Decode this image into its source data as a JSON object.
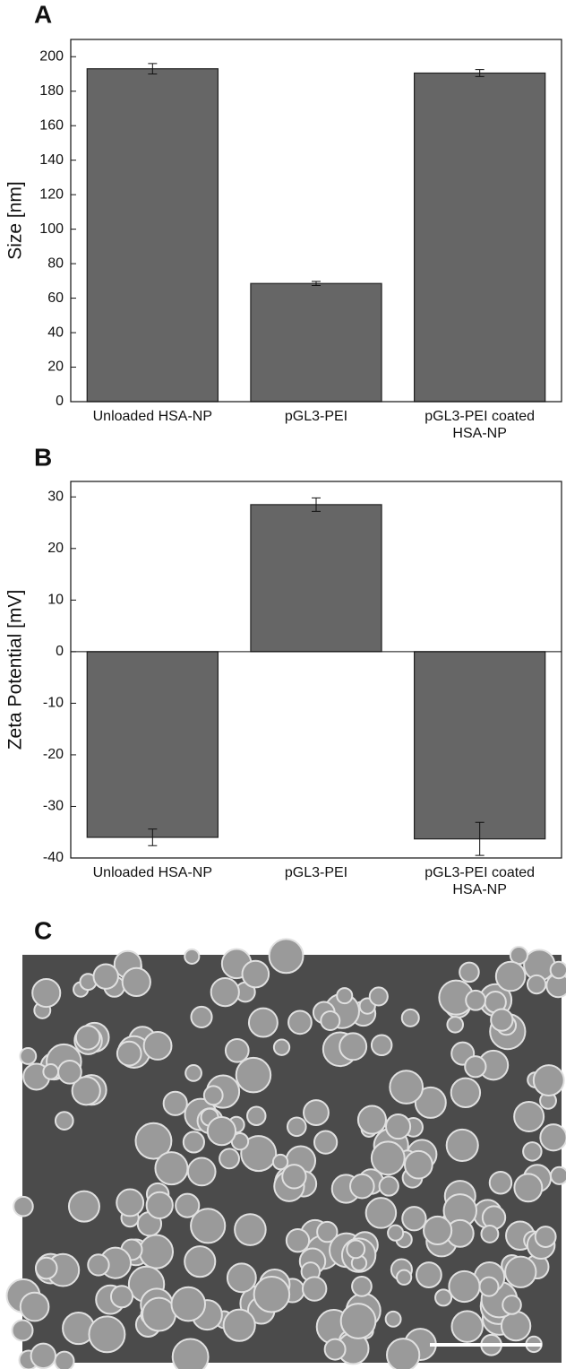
{
  "chart_data": [
    {
      "type": "bar",
      "panel": "A",
      "ylabel": "Size [nm]",
      "categories": [
        "Unloaded HSA-NP",
        "pGL3-PEI",
        "pGL3-PEI coated HSA-NP"
      ],
      "values": [
        193,
        68.5,
        190.5
      ],
      "errors": [
        3,
        1.2,
        2
      ],
      "color": "#666666",
      "ylim": [
        0,
        210
      ],
      "yticks": [
        0,
        20,
        40,
        60,
        80,
        100,
        120,
        140,
        160,
        180,
        200
      ]
    },
    {
      "type": "bar",
      "panel": "B",
      "ylabel": "Zeta Potential [mV]",
      "categories": [
        "Unloaded HSA-NP",
        "pGL3-PEI",
        "pGL3-PEI coated HSA-NP"
      ],
      "values": [
        -36,
        28.5,
        -36.3
      ],
      "errors": [
        1.6,
        1.3,
        3.2
      ],
      "color": "#666666",
      "ylim": [
        -40,
        33
      ],
      "yticks": [
        -40,
        -30,
        -20,
        -10,
        0,
        10,
        20,
        30
      ]
    }
  ],
  "image_panel": {
    "panel": "C"
  }
}
